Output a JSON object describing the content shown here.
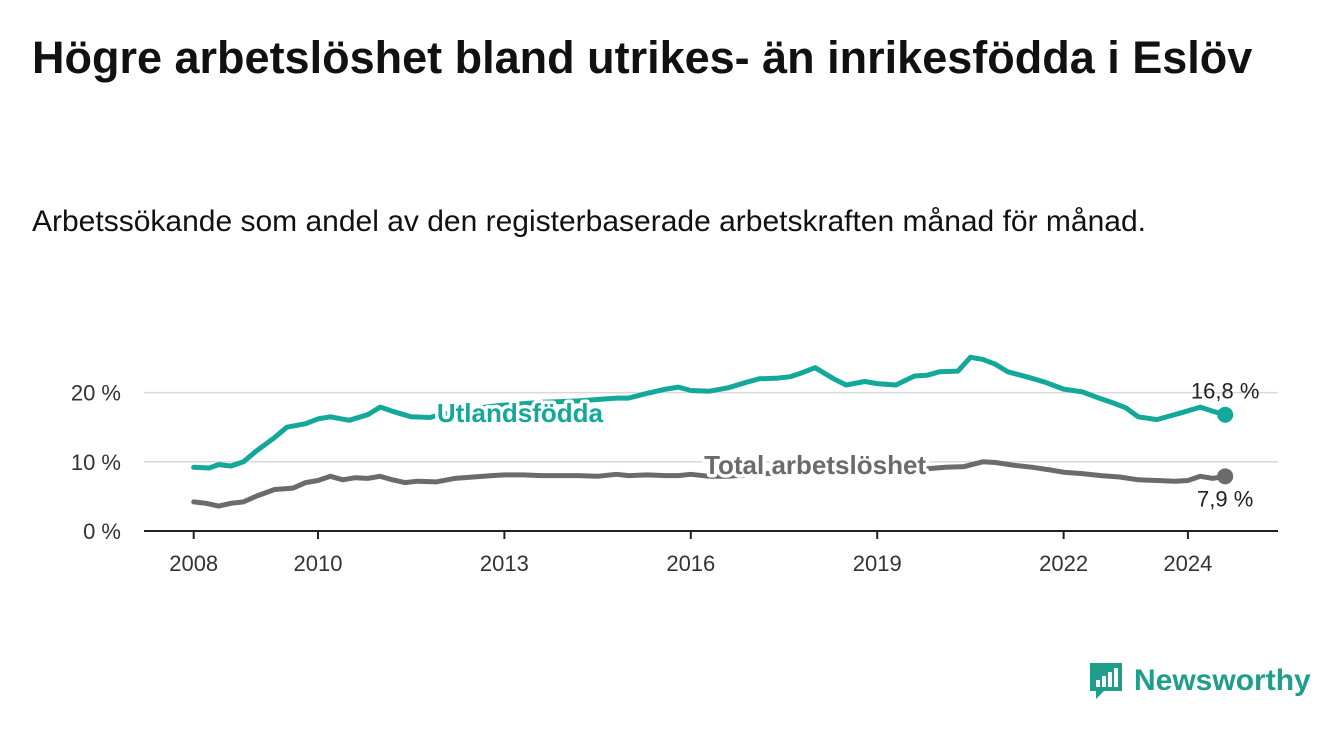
{
  "title": "Högre arbetslöshet bland utrikes- än inrikesfödda i Eslöv",
  "subtitle": "Arbetssökande som andel av den registerbaserade arbetskraften månad för månad.",
  "brand": {
    "name": "Newsworthy",
    "color": "#1f9e8c"
  },
  "chart_data": {
    "type": "line",
    "title": "Högre arbetslöshet bland utrikes- än inrikesfödda i Eslöv",
    "ylabel": "",
    "xlabel": "",
    "ylim": [
      0,
      25
    ],
    "xlim": [
      2007.2,
      2025.45
    ],
    "y_ticks": [
      {
        "value": 0,
        "label": "0 %"
      },
      {
        "value": 10,
        "label": "10 %"
      },
      {
        "value": 20,
        "label": "20 %"
      }
    ],
    "x_ticks": [
      {
        "value": 2008,
        "label": "2008"
      },
      {
        "value": 2010,
        "label": "2010"
      },
      {
        "value": 2013,
        "label": "2013"
      },
      {
        "value": 2016,
        "label": "2016"
      },
      {
        "value": 2019,
        "label": "2019"
      },
      {
        "value": 2022,
        "label": "2022"
      },
      {
        "value": 2024,
        "label": "2024"
      }
    ],
    "series": [
      {
        "name": "Utlandsfödda",
        "color": "#14a89a",
        "label_position": "above-line",
        "end_label": "16,8 %",
        "x": [
          2008.0,
          2008.25,
          2008.4,
          2008.6,
          2008.8,
          2009.0,
          2009.3,
          2009.5,
          2009.8,
          2010.0,
          2010.2,
          2010.5,
          2010.8,
          2011.0,
          2011.2,
          2011.5,
          2011.8,
          2012.0,
          2012.3,
          2012.6,
          2012.8,
          2013.0,
          2013.3,
          2013.6,
          2013.9,
          2014.2,
          2014.5,
          2014.8,
          2015.0,
          2015.3,
          2015.6,
          2015.8,
          2016.0,
          2016.3,
          2016.6,
          2016.9,
          2017.1,
          2017.4,
          2017.6,
          2017.8,
          2018.0,
          2018.3,
          2018.5,
          2018.8,
          2019.0,
          2019.3,
          2019.6,
          2019.8,
          2020.0,
          2020.3,
          2020.5,
          2020.7,
          2020.9,
          2021.1,
          2021.4,
          2021.7,
          2022.0,
          2022.3,
          2022.6,
          2022.8,
          2023.0,
          2023.2,
          2023.5,
          2023.7,
          2023.9,
          2024.2,
          2024.4,
          2024.6
        ],
        "values": [
          9.2,
          9.1,
          9.6,
          9.4,
          10.0,
          11.5,
          13.5,
          15.0,
          15.5,
          16.2,
          16.5,
          16.0,
          16.8,
          17.9,
          17.3,
          16.5,
          16.4,
          16.9,
          17.2,
          17.8,
          18.0,
          18.2,
          18.4,
          18.6,
          18.7,
          18.8,
          19.0,
          19.2,
          19.2,
          19.9,
          20.5,
          20.8,
          20.3,
          20.2,
          20.7,
          21.5,
          22.0,
          22.1,
          22.3,
          22.9,
          23.6,
          22.0,
          21.1,
          21.6,
          21.3,
          21.1,
          22.4,
          22.5,
          23.0,
          23.1,
          25.1,
          24.8,
          24.1,
          23.0,
          22.3,
          21.5,
          20.5,
          20.1,
          19.1,
          18.5,
          17.8,
          16.5,
          16.1,
          16.6,
          17.1,
          17.9,
          17.3,
          16.8
        ]
      },
      {
        "name": "Total arbetslöshet",
        "color": "#6b6b6d",
        "label_position": "above-line",
        "end_label": "7,9 %",
        "x": [
          2008.0,
          2008.2,
          2008.4,
          2008.6,
          2008.8,
          2009.0,
          2009.3,
          2009.6,
          2009.8,
          2010.0,
          2010.2,
          2010.4,
          2010.6,
          2010.8,
          2011.0,
          2011.2,
          2011.4,
          2011.6,
          2011.9,
          2012.2,
          2012.5,
          2012.8,
          2013.0,
          2013.3,
          2013.6,
          2013.9,
          2014.2,
          2014.5,
          2014.8,
          2015.0,
          2015.3,
          2015.6,
          2015.8,
          2016.0,
          2016.3,
          2016.6,
          2016.9,
          2017.2,
          2017.5,
          2017.8,
          2018.0,
          2018.3,
          2018.6,
          2018.9,
          2019.2,
          2019.5,
          2019.8,
          2020.1,
          2020.4,
          2020.7,
          2020.9,
          2021.2,
          2021.5,
          2021.8,
          2022.0,
          2022.3,
          2022.6,
          2022.9,
          2023.2,
          2023.5,
          2023.8,
          2024.0,
          2024.2,
          2024.4,
          2024.6
        ],
        "values": [
          4.2,
          4.0,
          3.6,
          4.0,
          4.2,
          5.0,
          6.0,
          6.2,
          7.0,
          7.3,
          7.9,
          7.4,
          7.7,
          7.6,
          7.9,
          7.4,
          7.0,
          7.2,
          7.1,
          7.6,
          7.8,
          8.0,
          8.1,
          8.1,
          8.0,
          8.0,
          8.0,
          7.9,
          8.2,
          8.0,
          8.1,
          8.0,
          8.0,
          8.2,
          7.9,
          7.9,
          8.1,
          8.3,
          8.4,
          8.6,
          8.6,
          8.6,
          8.7,
          8.8,
          8.9,
          8.9,
          9.0,
          9.2,
          9.3,
          10.0,
          9.9,
          9.5,
          9.2,
          8.8,
          8.5,
          8.3,
          8.0,
          7.8,
          7.4,
          7.3,
          7.2,
          7.3,
          7.9,
          7.6,
          7.9
        ]
      }
    ]
  }
}
